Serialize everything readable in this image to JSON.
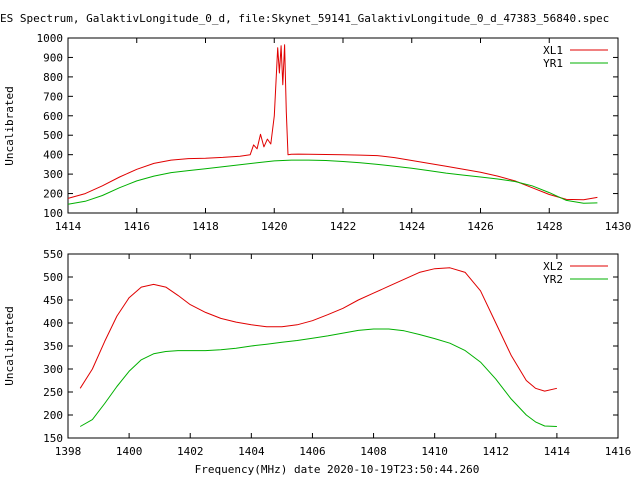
{
  "title": "ES Spectrum, GalaktivLongitude_0_d, file:Skynet_59141_GalaktivLongitude_0_d_47383_56840.spec",
  "xlabel": "Frequency(MHz) date 2020-10-19T23:50:44.260",
  "colors": {
    "red": "#e00000",
    "green": "#00b000"
  },
  "chart_data": [
    {
      "type": "line",
      "ylabel": "Uncalibrated",
      "xlim": [
        1414,
        1430
      ],
      "ylim": [
        100,
        1000
      ],
      "xticks": [
        "1414",
        "1416",
        "1418",
        "1420",
        "1422",
        "1424",
        "1426",
        "1428",
        "1430"
      ],
      "yticks": [
        "100",
        "200",
        "300",
        "400",
        "500",
        "600",
        "700",
        "800",
        "900",
        "1000"
      ],
      "legend_position": "top-right",
      "series": [
        {
          "name": "XL1",
          "color": "#e00000",
          "x": [
            1414.0,
            1414.5,
            1415.0,
            1415.5,
            1416.0,
            1416.5,
            1417.0,
            1417.5,
            1418.0,
            1418.5,
            1419.0,
            1419.3,
            1419.4,
            1419.5,
            1419.6,
            1419.7,
            1419.8,
            1419.9,
            1420.0,
            1420.1,
            1420.15,
            1420.2,
            1420.25,
            1420.3,
            1420.35,
            1420.4,
            1420.5,
            1420.7,
            1421.0,
            1421.5,
            1422.0,
            1422.5,
            1423.0,
            1423.5,
            1424.0,
            1424.5,
            1425.0,
            1425.5,
            1426.0,
            1426.5,
            1427.0,
            1427.5,
            1428.0,
            1428.5,
            1429.0,
            1429.4
          ],
          "y": [
            175,
            200,
            240,
            285,
            325,
            355,
            372,
            380,
            382,
            386,
            392,
            400,
            450,
            430,
            505,
            440,
            480,
            455,
            600,
            950,
            820,
            960,
            760,
            965,
            620,
            400,
            402,
            403,
            402,
            401,
            400,
            398,
            395,
            385,
            370,
            355,
            340,
            325,
            310,
            290,
            265,
            230,
            195,
            170,
            168,
            180
          ]
        },
        {
          "name": "YR1",
          "color": "#00b000",
          "x": [
            1414.0,
            1414.5,
            1415.0,
            1415.5,
            1416.0,
            1416.5,
            1417.0,
            1417.5,
            1418.0,
            1418.5,
            1419.0,
            1419.5,
            1420.0,
            1420.5,
            1421.0,
            1421.5,
            1422.0,
            1422.5,
            1423.0,
            1423.5,
            1424.0,
            1424.5,
            1425.0,
            1425.5,
            1426.0,
            1426.5,
            1427.0,
            1427.5,
            1428.0,
            1428.5,
            1429.0,
            1429.4
          ],
          "y": [
            145,
            160,
            190,
            230,
            265,
            290,
            308,
            318,
            328,
            338,
            348,
            358,
            368,
            372,
            372,
            370,
            365,
            358,
            350,
            340,
            330,
            318,
            305,
            295,
            285,
            275,
            262,
            240,
            205,
            165,
            150,
            152
          ]
        }
      ]
    },
    {
      "type": "line",
      "ylabel": "Uncalibrated",
      "xlim": [
        1398,
        1416
      ],
      "ylim": [
        150,
        550
      ],
      "xticks": [
        "1398",
        "1400",
        "1402",
        "1404",
        "1406",
        "1408",
        "1410",
        "1412",
        "1414",
        "1416"
      ],
      "yticks": [
        "150",
        "200",
        "250",
        "300",
        "350",
        "400",
        "450",
        "500",
        "550"
      ],
      "legend_position": "top-right",
      "series": [
        {
          "name": "XL2",
          "color": "#e00000",
          "x": [
            1398.4,
            1398.8,
            1399.2,
            1399.6,
            1400.0,
            1400.4,
            1400.8,
            1401.2,
            1401.6,
            1402.0,
            1402.5,
            1403.0,
            1403.5,
            1404.0,
            1404.5,
            1405.0,
            1405.5,
            1406.0,
            1406.5,
            1407.0,
            1407.5,
            1408.0,
            1408.5,
            1409.0,
            1409.5,
            1410.0,
            1410.5,
            1411.0,
            1411.5,
            1412.0,
            1412.5,
            1413.0,
            1413.3,
            1413.6,
            1414.0
          ],
          "y": [
            258,
            300,
            360,
            415,
            455,
            478,
            484,
            478,
            460,
            440,
            423,
            410,
            402,
            396,
            392,
            392,
            396,
            405,
            418,
            432,
            450,
            465,
            480,
            495,
            510,
            518,
            520,
            510,
            470,
            400,
            330,
            275,
            258,
            252,
            258
          ]
        },
        {
          "name": "YR2",
          "color": "#00b000",
          "x": [
            1398.4,
            1398.8,
            1399.2,
            1399.6,
            1400.0,
            1400.4,
            1400.8,
            1401.2,
            1401.6,
            1402.0,
            1402.5,
            1403.0,
            1403.5,
            1404.0,
            1404.5,
            1405.0,
            1405.5,
            1406.0,
            1406.5,
            1407.0,
            1407.5,
            1408.0,
            1408.5,
            1409.0,
            1409.5,
            1410.0,
            1410.5,
            1411.0,
            1411.5,
            1412.0,
            1412.5,
            1413.0,
            1413.3,
            1413.6,
            1414.0
          ],
          "y": [
            175,
            190,
            225,
            262,
            295,
            320,
            333,
            338,
            340,
            340,
            340,
            342,
            345,
            350,
            354,
            358,
            362,
            367,
            372,
            378,
            384,
            387,
            387,
            383,
            375,
            366,
            356,
            340,
            315,
            278,
            235,
            200,
            185,
            176,
            175
          ]
        }
      ]
    }
  ]
}
